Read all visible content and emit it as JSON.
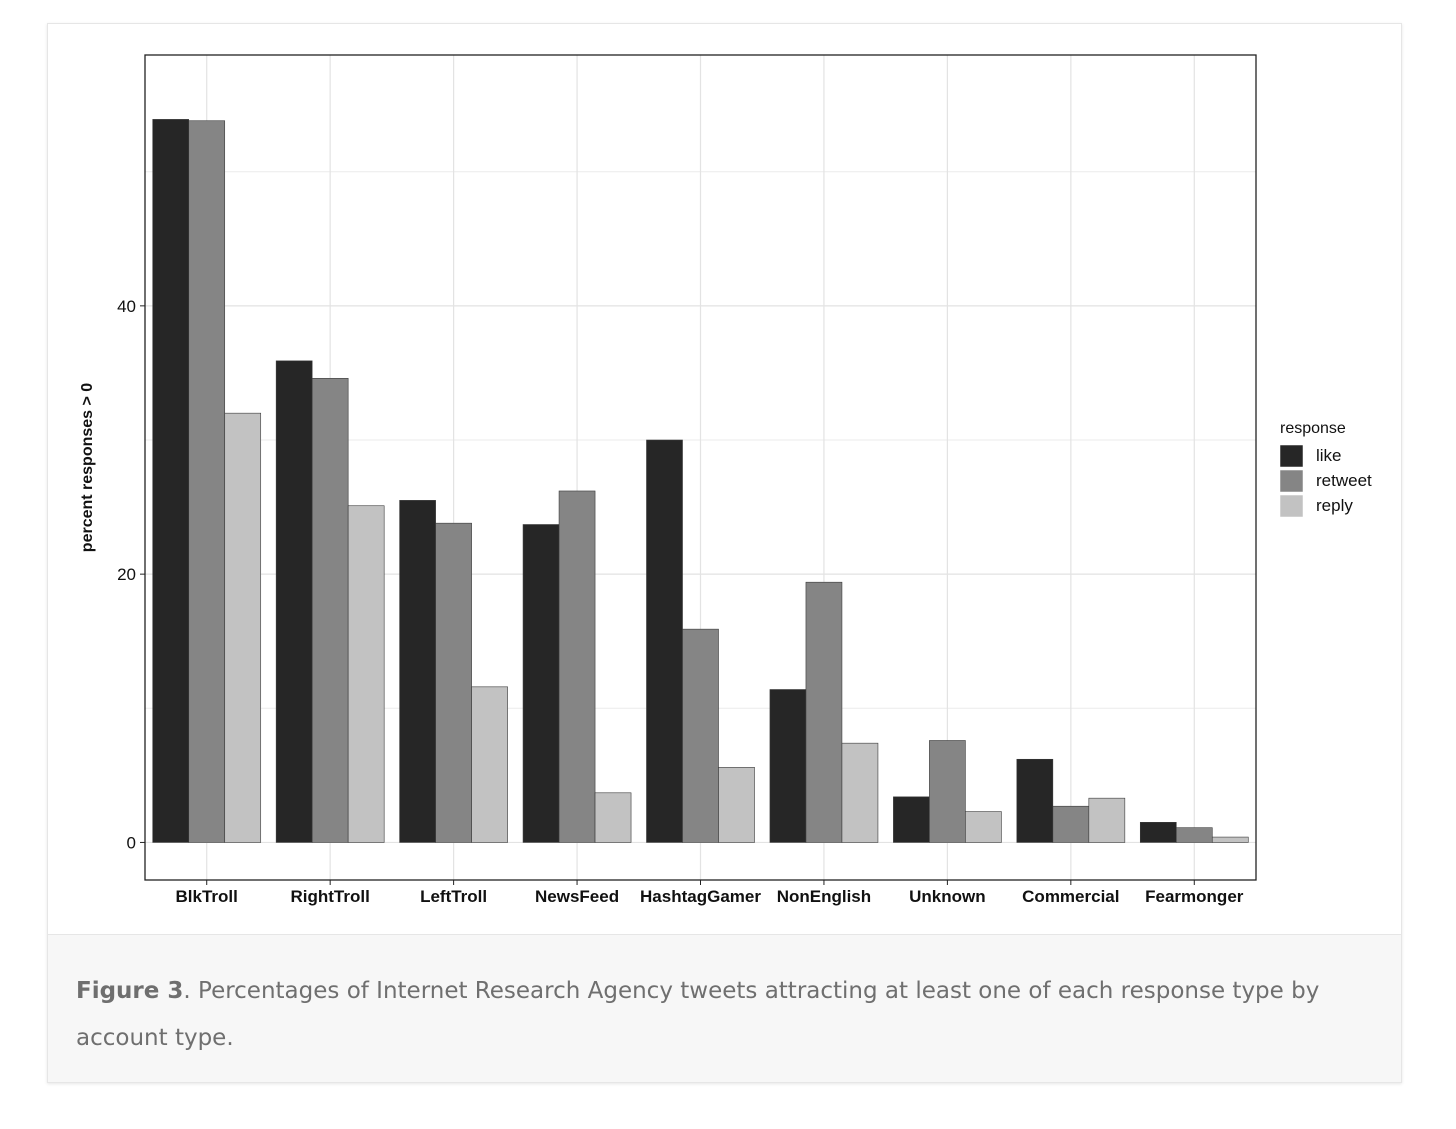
{
  "figure": {
    "label": "Figure 3",
    "caption_text": ". Percentages of Internet Research Agency tweets attracting at least one of each response type by account type."
  },
  "chart_data": {
    "type": "bar",
    "title": "",
    "xlabel": "",
    "ylabel": "percent responses > 0",
    "ylim": [
      -2.8,
      58.7
    ],
    "yticks": [
      0,
      20,
      40
    ],
    "grid": true,
    "legend_position": "right",
    "legend_title": "response",
    "categories": [
      "BlkTroll",
      "RightTroll",
      "LeftTroll",
      "NewsFeed",
      "HashtagGamer",
      "NonEnglish",
      "Unknown",
      "Commercial",
      "Fearmonger"
    ],
    "series": [
      {
        "name": "like",
        "color": "#262626",
        "values": [
          53.9,
          35.9,
          25.5,
          23.7,
          30.0,
          11.4,
          3.4,
          6.2,
          1.5
        ]
      },
      {
        "name": "retweet",
        "color": "#858585",
        "values": [
          53.8,
          34.6,
          23.8,
          26.2,
          15.9,
          19.4,
          7.6,
          2.7,
          1.1
        ]
      },
      {
        "name": "reply",
        "color": "#c2c2c2",
        "values": [
          32.0,
          25.1,
          11.6,
          3.7,
          5.6,
          7.4,
          2.3,
          3.3,
          0.4
        ]
      }
    ]
  }
}
